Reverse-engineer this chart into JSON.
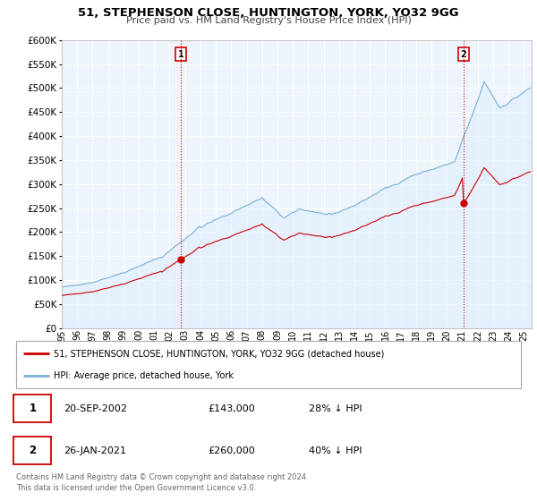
{
  "title": "51, STEPHENSON CLOSE, HUNTINGTON, YORK, YO32 9GG",
  "subtitle": "Price paid vs. HM Land Registry's House Price Index (HPI)",
  "sale1_date": "20-SEP-2002",
  "sale1_price": 143000,
  "sale1_year": 2002.72,
  "sale2_date": "26-JAN-2021",
  "sale2_price": 260000,
  "sale2_year": 2021.07,
  "legend_line1": "51, STEPHENSON CLOSE, HUNTINGTON, YORK, YO32 9GG (detached house)",
  "legend_line2": "HPI: Average price, detached house, York",
  "footnote": "Contains HM Land Registry data © Crown copyright and database right 2024.\nThis data is licensed under the Open Government Licence v3.0.",
  "red_color": "#cc0000",
  "blue_color": "#7ab0d4",
  "blue_fill": "#ddeeff",
  "bg_color": "#ffffff",
  "plot_bg": "#eef4fb",
  "grid_color": "#ffffff",
  "ylim": [
    0,
    600000
  ],
  "xlim_left": 1995,
  "xlim_right": 2025.5,
  "sale1_hpi": 198700,
  "sale2_hpi": 433000,
  "hpi_base_at_sale1": 198700,
  "hpi_base_at_sale2": 433000,
  "sale1_ratio": 0.72,
  "sale2_ratio": 0.6,
  "xtick_labels": [
    "95",
    "96",
    "97",
    "98",
    "99",
    "00",
    "01",
    "02",
    "03",
    "04",
    "05",
    "06",
    "07",
    "08",
    "09",
    "10",
    "11",
    "12",
    "13",
    "14",
    "15",
    "16",
    "17",
    "18",
    "19",
    "20",
    "21",
    "22",
    "23",
    "24",
    "25"
  ],
  "xtick_years": [
    1995,
    1996,
    1997,
    1998,
    1999,
    2000,
    2001,
    2002,
    2003,
    2004,
    2005,
    2006,
    2007,
    2008,
    2009,
    2010,
    2011,
    2012,
    2013,
    2014,
    2015,
    2016,
    2017,
    2018,
    2019,
    2020,
    2021,
    2022,
    2023,
    2024,
    2025
  ],
  "ytick_vals": [
    0,
    50000,
    100000,
    150000,
    200000,
    250000,
    300000,
    350000,
    400000,
    450000,
    500000,
    550000,
    600000
  ],
  "ytick_labels": [
    "£0",
    "£50K",
    "£100K",
    "£150K",
    "£200K",
    "£250K",
    "£300K",
    "£350K",
    "£400K",
    "£450K",
    "£500K",
    "£550K",
    "£600K"
  ]
}
